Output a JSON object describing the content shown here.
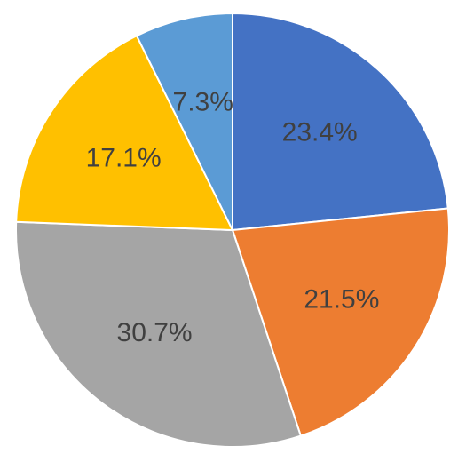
{
  "chart_data": {
    "type": "pie",
    "title": "",
    "legend": "none",
    "start_angle_deg": 0,
    "direction": "clockwise",
    "slices": [
      {
        "value": 23.4,
        "label": "23.4%",
        "color": "#4472C4"
      },
      {
        "value": 21.5,
        "label": "21.5%",
        "color": "#ED7D31"
      },
      {
        "value": 30.7,
        "label": "30.7%",
        "color": "#A5A5A5"
      },
      {
        "value": 17.1,
        "label": "17.1%",
        "color": "#FFC000"
      },
      {
        "value": 7.3,
        "label": "7.3%",
        "color": "#5B9BD5"
      }
    ]
  }
}
